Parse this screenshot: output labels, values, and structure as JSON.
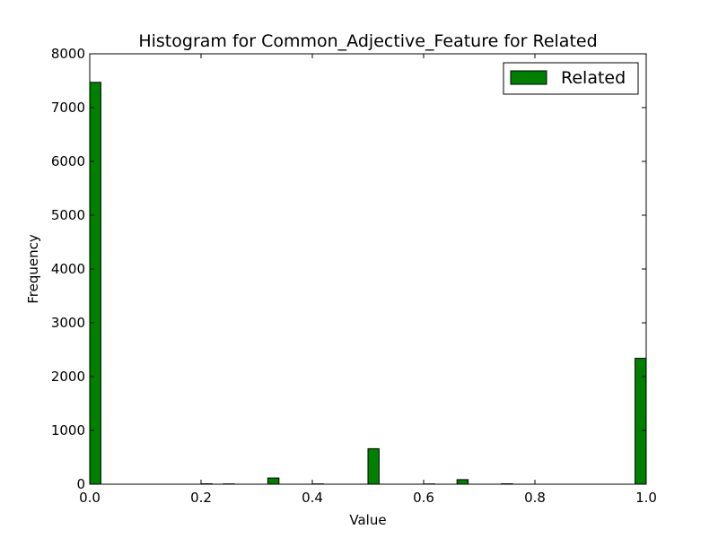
{
  "chart_data": {
    "type": "bar",
    "title": "Histogram for Common_Adjective_Feature for Related",
    "xlabel": "Value",
    "ylabel": "Frequency",
    "xlim": [
      0.0,
      1.0
    ],
    "ylim": [
      0,
      8000
    ],
    "xticks": [
      "0.0",
      "0.2",
      "0.4",
      "0.6",
      "0.8",
      "1.0"
    ],
    "yticks": [
      "0",
      "1000",
      "2000",
      "3000",
      "4000",
      "5000",
      "6000",
      "7000",
      "8000"
    ],
    "bins": 50,
    "grid": false,
    "legend_position": "top-right",
    "series": [
      {
        "name": "Related",
        "color": "#008000",
        "bins_start": [
          0.0,
          0.2,
          0.24,
          0.32,
          0.4,
          0.5,
          0.6,
          0.66,
          0.74,
          0.98
        ],
        "values": [
          7470,
          8,
          6,
          115,
          6,
          660,
          5,
          85,
          8,
          2340
        ]
      }
    ]
  }
}
